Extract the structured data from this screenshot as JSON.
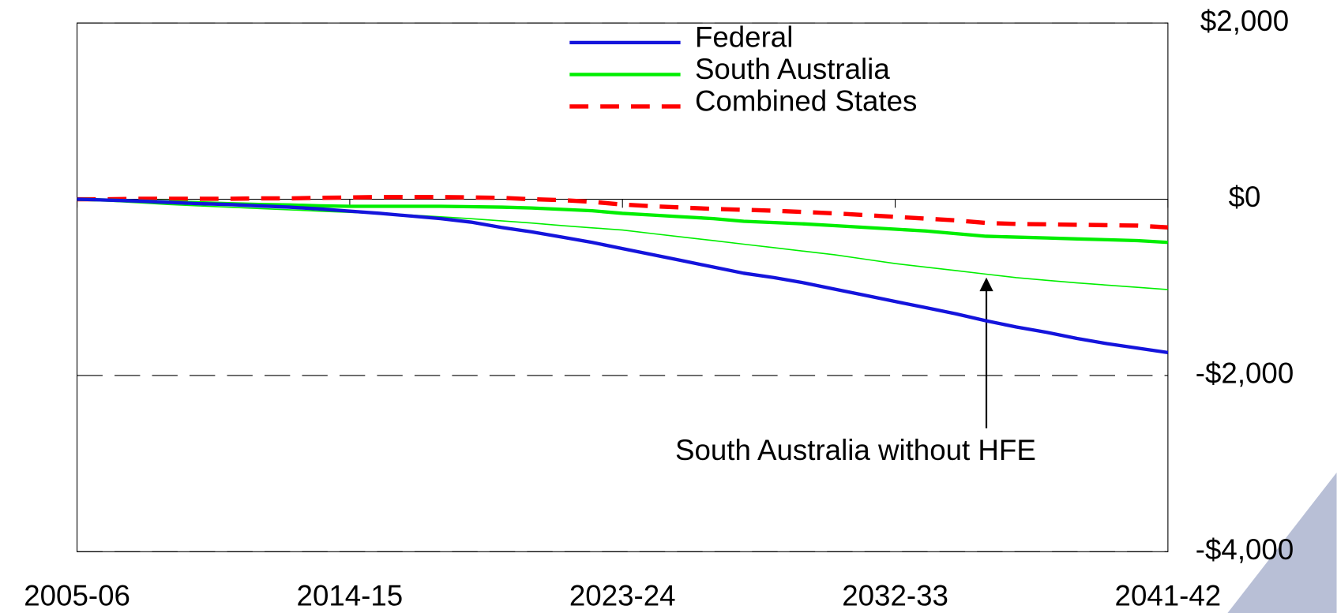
{
  "chart_data": {
    "type": "line",
    "categories": [
      "2005-06",
      null,
      null,
      null,
      null,
      null,
      null,
      null,
      null,
      "2014-15",
      null,
      null,
      null,
      null,
      null,
      null,
      null,
      null,
      "2023-24",
      null,
      null,
      null,
      null,
      null,
      null,
      null,
      null,
      "2032-33",
      null,
      null,
      null,
      null,
      null,
      null,
      null,
      null,
      "2041-42"
    ],
    "series": [
      {
        "name": "Federal",
        "color": "#1414dc",
        "width": 4,
        "dashed": false,
        "values": [
          0,
          -10,
          -20,
          -35,
          -50,
          -60,
          -75,
          -90,
          -110,
          -135,
          -160,
          -190,
          -220,
          -260,
          -320,
          -370,
          -430,
          -490,
          -560,
          -630,
          -700,
          -770,
          -840,
          -890,
          -950,
          -1020,
          -1090,
          -1160,
          -1230,
          -1300,
          -1380,
          -1450,
          -1510,
          -1580,
          -1640,
          -1690,
          -1740
        ]
      },
      {
        "name": "South Australia",
        "color": "#00ee00",
        "width": 4,
        "dashed": false,
        "values": [
          0,
          -10,
          -20,
          -30,
          -40,
          -50,
          -60,
          -65,
          -75,
          -80,
          -80,
          -80,
          -80,
          -85,
          -90,
          -100,
          -115,
          -130,
          -160,
          -180,
          -200,
          -220,
          -250,
          -265,
          -280,
          -300,
          -320,
          -340,
          -360,
          -390,
          -420,
          -430,
          -440,
          -450,
          -460,
          -470,
          -490
        ]
      },
      {
        "name": "Combined States",
        "color": "#ff0000",
        "width": 5,
        "dashed": true,
        "values": [
          0,
          0,
          5,
          5,
          5,
          5,
          10,
          10,
          15,
          20,
          25,
          25,
          25,
          20,
          15,
          0,
          -10,
          -30,
          -60,
          -80,
          -95,
          -110,
          -120,
          -130,
          -145,
          -160,
          -180,
          -200,
          -220,
          -240,
          -270,
          -280,
          -285,
          -290,
          -295,
          -300,
          -320
        ]
      },
      {
        "color": "#00ee00",
        "width": 1.5,
        "dashed": false,
        "values": [
          0,
          -20,
          -40,
          -60,
          -75,
          -90,
          -105,
          -120,
          -135,
          -150,
          -165,
          -180,
          -200,
          -220,
          -245,
          -270,
          -300,
          -325,
          -350,
          -390,
          -430,
          -470,
          -510,
          -550,
          -590,
          -630,
          -680,
          -730,
          -770,
          -810,
          -850,
          -890,
          -920,
          -950,
          -975,
          -1000,
          -1025
        ]
      }
    ],
    "annotation": "South Australia without HFE",
    "ylim": [
      -4000,
      2000
    ],
    "yticks": [
      {
        "value": -4000,
        "label": "-$4,000"
      },
      {
        "value": -2000,
        "label": "-$2,000"
      },
      {
        "value": 0,
        "label": "$0"
      },
      {
        "value": 2000,
        "label": "$2,000"
      }
    ],
    "grid": true,
    "legend": "top"
  }
}
